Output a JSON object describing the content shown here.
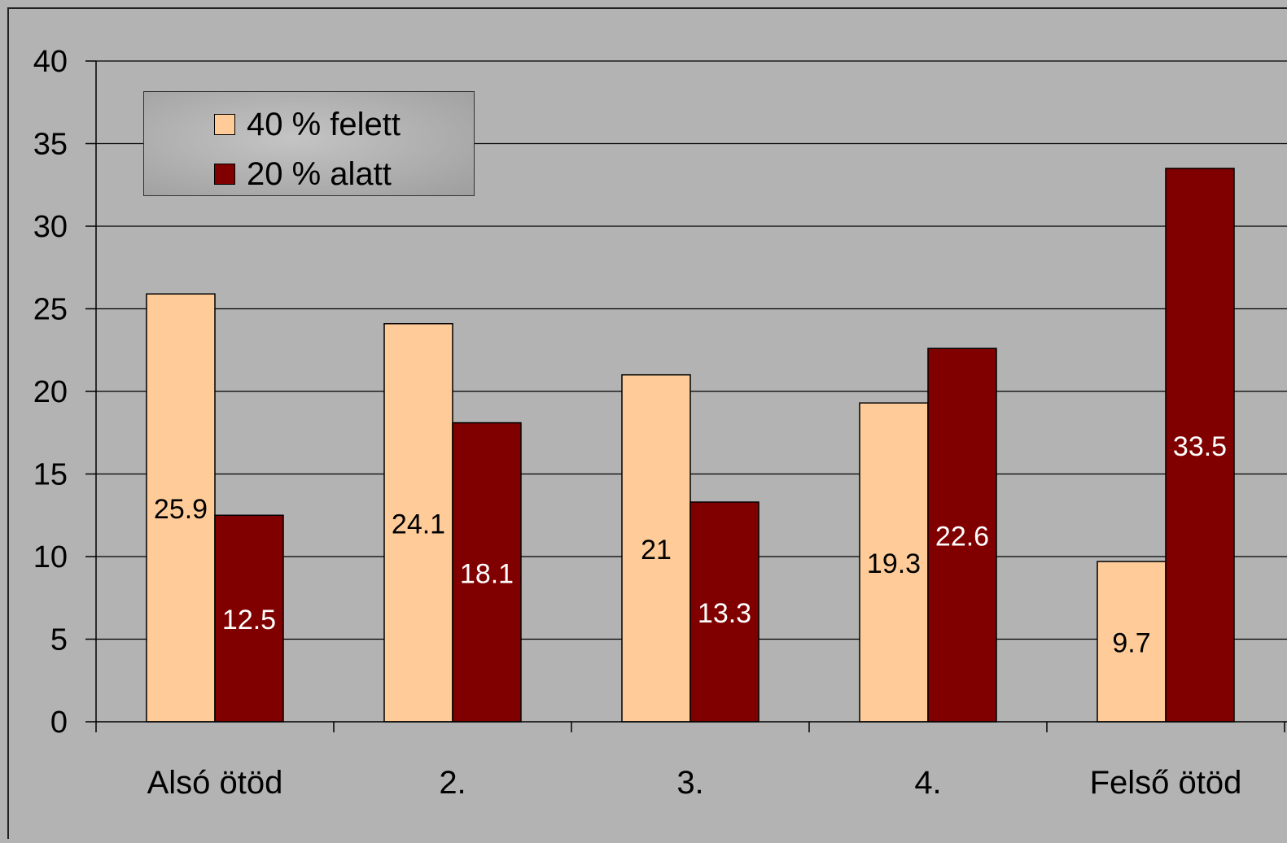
{
  "chart_data": {
    "type": "bar",
    "title": "",
    "xlabel": "",
    "ylabel": "",
    "categories": [
      "Alsó ötöd",
      "2.",
      "3.",
      "4.",
      "Felső ötöd"
    ],
    "series": [
      {
        "name": "40 % felett",
        "color": "#ffcc99",
        "label_color": "#000000",
        "values": [
          25.9,
          24.1,
          21,
          19.3,
          9.7
        ]
      },
      {
        "name": "20 % alatt",
        "color": "#800000",
        "label_color": "#ffffff",
        "values": [
          12.5,
          18.1,
          13.3,
          22.6,
          33.5
        ]
      }
    ],
    "ylim": [
      0,
      40
    ],
    "yticks": [
      0,
      5,
      10,
      15,
      20,
      25,
      30,
      35,
      40
    ],
    "grid": true,
    "legend_position": "top-left",
    "background_color": "#b3b3b3",
    "gridline_color": "#000000"
  }
}
